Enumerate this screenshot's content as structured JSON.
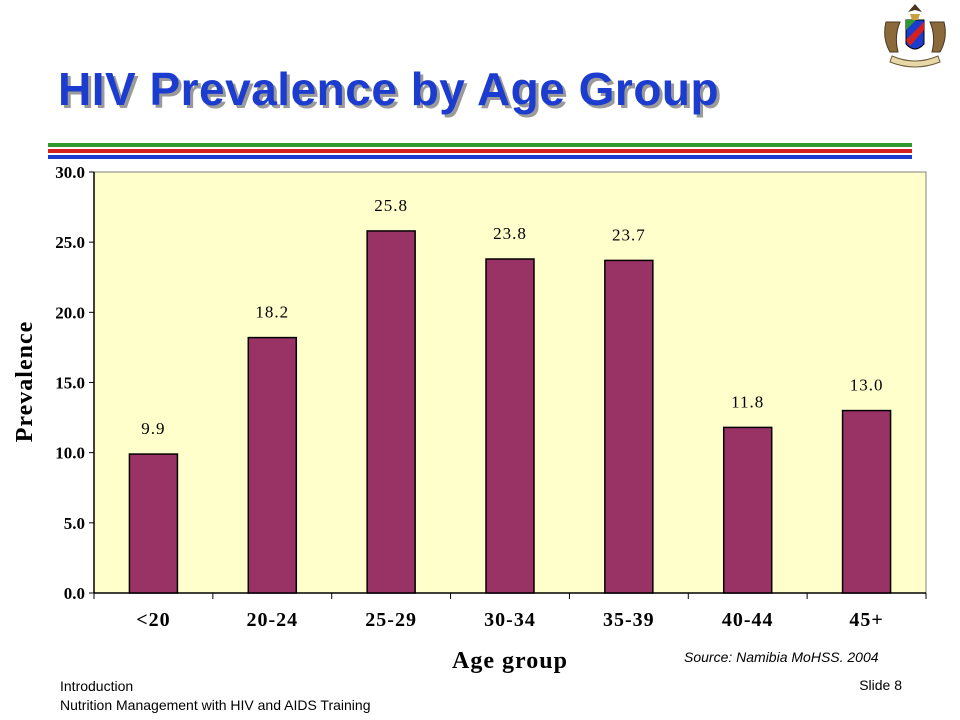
{
  "slide": {
    "title": "HIV Prevalence by Age Group",
    "source": "Source:  Namibia MoHSS. 2004",
    "footer_line1": "Introduction",
    "footer_line2": "Nutrition Management with HIV and AIDS Training",
    "slide_number": "Slide 8",
    "rule_colors": [
      "#2e9a2e",
      "#d42020",
      "#1c3cd0"
    ]
  },
  "chart_data": {
    "type": "bar",
    "title": "",
    "xlabel": "Age group",
    "ylabel": "Prevalence",
    "categories": [
      "<20",
      "20-24",
      "25-29",
      "30-34",
      "35-39",
      "40-44",
      "45+"
    ],
    "values": [
      9.9,
      18.2,
      25.8,
      23.8,
      23.7,
      11.8,
      13.0
    ],
    "data_labels": [
      "9.9",
      "18.2",
      "25.8",
      "23.8",
      "23.7",
      "11.8",
      "13.0"
    ],
    "ylim": [
      0,
      30
    ],
    "yticks": [
      "0.0",
      "5.0",
      "10.0",
      "15.0",
      "20.0",
      "25.0",
      "30.0"
    ],
    "grid": false,
    "colors": {
      "bar": "#993366",
      "plot_bg": "#ffffcc"
    }
  }
}
